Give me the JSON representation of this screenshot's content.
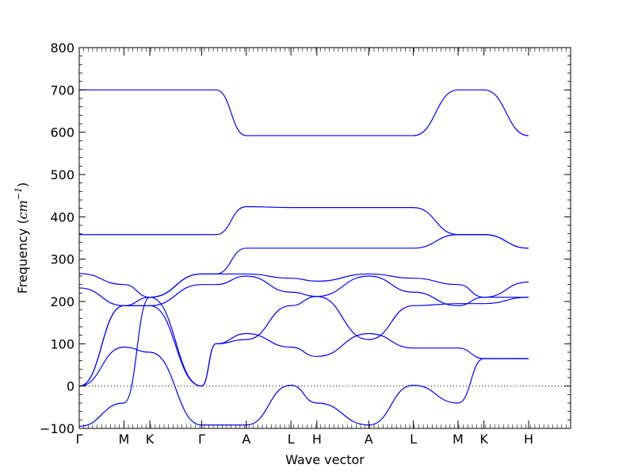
{
  "chart_data": {
    "type": "line",
    "title": "",
    "xlabel": "Wave vector",
    "ylabel": {
      "prefix": "Frequency (",
      "unit_base": "cm",
      "unit_exp": "−1",
      "suffix": ")"
    },
    "ylim": [
      -100,
      800
    ],
    "yticks": [
      -100,
      0,
      100,
      200,
      300,
      400,
      500,
      600,
      700,
      800
    ],
    "xlim": [
      0,
      11.0
    ],
    "x_points": [
      {
        "label": "Γ",
        "x": 0
      },
      {
        "label": "M",
        "x": 1.0
      },
      {
        "label": "K",
        "x": 1.58
      },
      {
        "label": "Γ",
        "x": 2.74
      },
      {
        "label": "A",
        "x": 3.74
      },
      {
        "label": "L",
        "x": 4.74
      },
      {
        "label": "H",
        "x": 5.32
      },
      {
        "label": "A",
        "x": 6.48
      },
      {
        "label": "L",
        "x": 7.48
      },
      {
        "label": "M",
        "x": 8.48
      },
      {
        "label": "K",
        "x": 9.06
      },
      {
        "label": "H",
        "x": 10.06
      }
    ],
    "zero_line": {
      "y": 0,
      "style": "dotted"
    },
    "line_color": "#0000ff",
    "grid": false,
    "series": [
      {
        "x": [
          0,
          1,
          1.58,
          2.74,
          3.06,
          3.74,
          4.74,
          5.32,
          6.48,
          7.48,
          8.48,
          9.06,
          10.06
        ],
        "y": [
          700,
          700,
          700,
          700,
          700,
          592,
          592,
          592,
          592,
          592,
          700,
          700,
          592
        ]
      },
      {
        "x": [
          0,
          1,
          1.58,
          2.74,
          3.06,
          3.74,
          4.74,
          5.32,
          6.48,
          7.48,
          8.48,
          9.06,
          10.06
        ],
        "y": [
          358,
          358,
          358,
          358,
          358,
          424,
          422,
          422,
          422,
          422,
          358,
          358,
          326
        ]
      },
      {
        "x": [
          0,
          1,
          1.58,
          2.74,
          3.06,
          3.74,
          4.74,
          5.32,
          6.48,
          7.48,
          8.48,
          9.06,
          10.06
        ],
        "y": [
          -95,
          -40,
          210,
          265,
          265,
          265,
          255,
          248,
          265,
          255,
          240,
          210,
          210
        ]
      },
      {
        "x": [
          0,
          1,
          1.58,
          2.74,
          3.06,
          3.74,
          4.74,
          5.32,
          6.48,
          7.48,
          8.48,
          9.06,
          10.06
        ],
        "y": [
          232,
          190,
          190,
          240,
          240,
          260,
          222,
          212,
          260,
          222,
          190,
          210,
          246
        ]
      },
      {
        "x": [
          0,
          1,
          1.58,
          2.74,
          3.06,
          3.74,
          4.74,
          5.32,
          6.48,
          7.48,
          8.48,
          9.06,
          10.06
        ],
        "y": [
          266,
          240,
          210,
          265,
          265,
          326,
          326,
          326,
          326,
          326,
          358,
          358,
          326
        ]
      },
      {
        "x": [
          0,
          1,
          1.58,
          2.74,
          3.06,
          3.74,
          4.74,
          5.32,
          6.48,
          7.48,
          8.48,
          9.06,
          10.06
        ],
        "y": [
          0,
          190,
          210,
          0,
          100,
          110,
          190,
          212,
          110,
          190,
          195,
          195,
          210
        ]
      },
      {
        "x": [
          0,
          1,
          1.58,
          2.74,
          3.06,
          3.74,
          4.74,
          5.32,
          6.48,
          7.48,
          8.48,
          9.06,
          10.06
        ],
        "y": [
          0,
          190,
          190,
          0,
          100,
          124,
          92,
          70,
          124,
          90,
          90,
          65,
          65
        ]
      },
      {
        "x": [
          0,
          1,
          1.58,
          2.74,
          3.06,
          3.74,
          4.74,
          5.32,
          6.48,
          7.48,
          8.48,
          9.06,
          10.06
        ],
        "y": [
          0,
          92,
          80,
          -92,
          -92,
          -92,
          2,
          -40,
          -92,
          2,
          -40,
          65,
          65
        ]
      }
    ]
  }
}
